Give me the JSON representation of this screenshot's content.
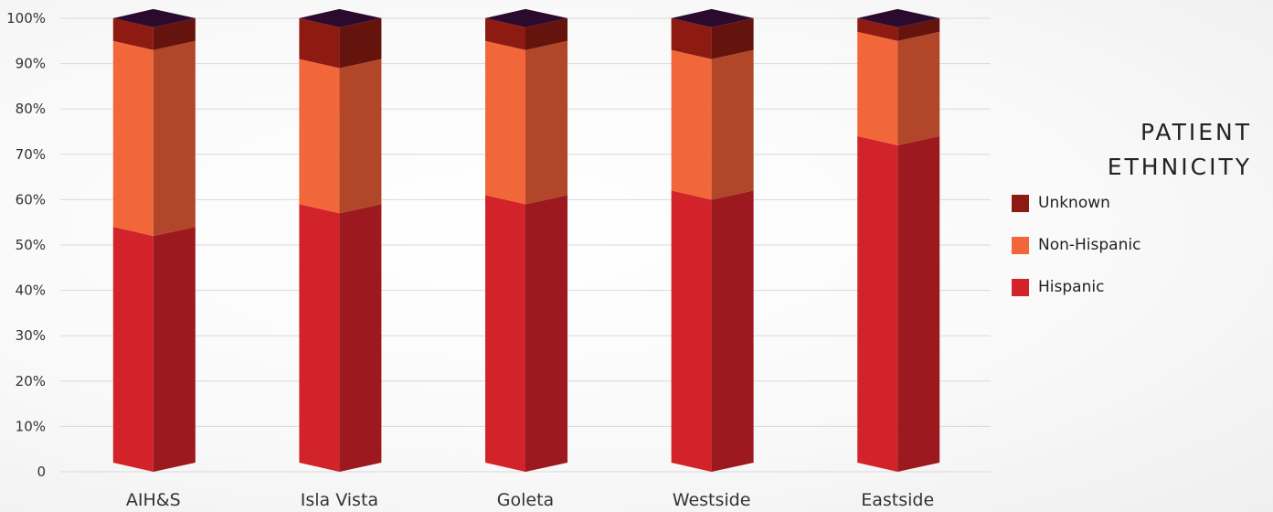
{
  "chart_data": {
    "type": "bar",
    "stacked": true,
    "style": "3d-column",
    "title": "PATIENT ETHNICITY",
    "categories": [
      "AIH&S",
      "Isla Vista",
      "Goleta",
      "Westside",
      "Eastside"
    ],
    "series": [
      {
        "name": "Hispanic",
        "values": [
          52,
          57,
          59,
          60,
          72
        ],
        "color": "#d2232a",
        "side_color": "#9c1a1f"
      },
      {
        "name": "Non-Hispanic",
        "values": [
          41,
          32,
          34,
          31,
          23
        ],
        "color": "#f26739",
        "side_color": "#b24628"
      },
      {
        "name": "Unknown",
        "values": [
          5,
          9,
          5,
          7,
          3
        ],
        "color": "#8e1b12",
        "side_color": "#65140d"
      }
    ],
    "top_color": "#2c0a2e",
    "ylim": [
      0,
      100
    ],
    "yticks": [
      "0",
      "10%",
      "20%",
      "30%",
      "40%",
      "50%",
      "60%",
      "70%",
      "80%",
      "90%",
      "100%"
    ],
    "grid": true,
    "legend_position": "right",
    "legend_order": [
      "Unknown",
      "Non-Hispanic",
      "Hispanic"
    ]
  }
}
